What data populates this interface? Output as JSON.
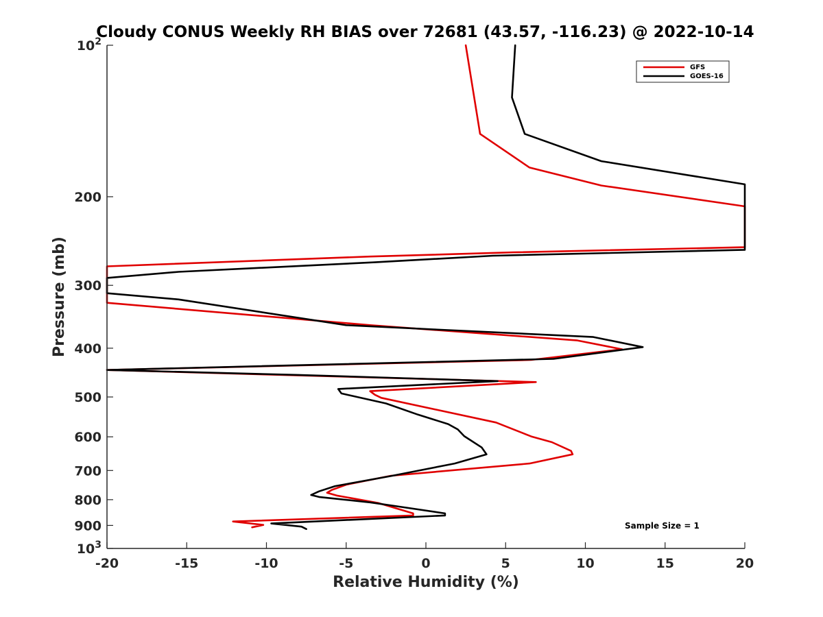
{
  "chart_data": {
    "type": "line",
    "title": "Cloudy CONUS Weekly RH BIAS over 72681 (43.57, -116.23) @ 2022-10-14",
    "xlabel": "Relative Humidity (%)",
    "ylabel": "Pressure (mb)",
    "xlim": [
      -20,
      20
    ],
    "ylim": [
      1000,
      100
    ],
    "yscale": "log",
    "y_reversed": true,
    "grid": false,
    "legend_position": "top-right",
    "x_ticks": [
      "-20",
      "-15",
      "-10",
      "-5",
      "0",
      "5",
      "10",
      "15",
      "20"
    ],
    "y_ticks": [
      {
        "value": 100,
        "base": "10",
        "exp": "2"
      },
      {
        "value": 200,
        "label": "200"
      },
      {
        "value": 300,
        "label": "300"
      },
      {
        "value": 400,
        "label": "400"
      },
      {
        "value": 500,
        "label": "500"
      },
      {
        "value": 600,
        "label": "600"
      },
      {
        "value": 700,
        "label": "700"
      },
      {
        "value": 800,
        "label": "800"
      },
      {
        "value": 900,
        "label": "900"
      },
      {
        "value": 1000,
        "base": "10",
        "exp": "3"
      }
    ],
    "series": [
      {
        "name": "GFS",
        "color": "#e00000",
        "points": [
          [
            2.5,
            100
          ],
          [
            3.4,
            150
          ],
          [
            6.5,
            175
          ],
          [
            11,
            190
          ],
          [
            20,
            209
          ],
          [
            20,
            252
          ],
          [
            5.5,
            258
          ],
          [
            -3.5,
            263
          ],
          [
            -20,
            275
          ],
          [
            -20,
            325
          ],
          [
            -3.5,
            360
          ],
          [
            9.5,
            386
          ],
          [
            12.3,
            402
          ],
          [
            6.6,
            422
          ],
          [
            -20,
            442
          ],
          [
            6.9,
            467
          ],
          [
            -3.5,
            487
          ],
          [
            -3.2,
            495
          ],
          [
            -2.8,
            502
          ],
          [
            4.4,
            562
          ],
          [
            5.5,
            580
          ],
          [
            6.6,
            599
          ],
          [
            7.9,
            615
          ],
          [
            9.1,
            640
          ],
          [
            9.2,
            650
          ],
          [
            6.5,
            678
          ],
          [
            -2.2,
            717
          ],
          [
            -5.0,
            747
          ],
          [
            -5.9,
            765
          ],
          [
            -6.2,
            775
          ],
          [
            -5.6,
            785
          ],
          [
            -3.0,
            812
          ],
          [
            -0.8,
            852
          ],
          [
            -0.8,
            860
          ],
          [
            -12.1,
            884
          ],
          [
            -10.2,
            898
          ],
          [
            -10.9,
            908
          ]
        ]
      },
      {
        "name": "GOES-16",
        "color": "#000000",
        "points": [
          [
            5.6,
            100
          ],
          [
            5.4,
            127
          ],
          [
            6.2,
            150
          ],
          [
            11,
            170
          ],
          [
            20,
            189
          ],
          [
            20,
            255
          ],
          [
            4.2,
            262
          ],
          [
            -3.2,
            270
          ],
          [
            -15.5,
            282
          ],
          [
            -20,
            290
          ],
          [
            -20,
            311
          ],
          [
            -15.5,
            320
          ],
          [
            -5,
            360
          ],
          [
            0.5,
            367
          ],
          [
            10.5,
            380
          ],
          [
            13.6,
            398
          ],
          [
            8.0,
            420
          ],
          [
            -20,
            442
          ],
          [
            -8.0,
            452
          ],
          [
            4.5,
            465
          ],
          [
            -5.5,
            482
          ],
          [
            -5.3,
            492
          ],
          [
            -2.5,
            515
          ],
          [
            -0.5,
            542
          ],
          [
            1.4,
            566
          ],
          [
            2.0,
            580
          ],
          [
            2.4,
            598
          ],
          [
            3.5,
            630
          ],
          [
            3.8,
            650
          ],
          [
            1.8,
            678
          ],
          [
            -2.2,
            718
          ],
          [
            -5.7,
            752
          ],
          [
            -6.7,
            770
          ],
          [
            -7.2,
            783
          ],
          [
            -6.7,
            790
          ],
          [
            -3.5,
            810
          ],
          [
            -2.0,
            823
          ],
          [
            1.2,
            852
          ],
          [
            1.2,
            860
          ],
          [
            -9.7,
            892
          ],
          [
            -7.8,
            905
          ],
          [
            -7.5,
            915
          ]
        ]
      }
    ],
    "annotations": [
      "Sample Size = 1"
    ]
  }
}
